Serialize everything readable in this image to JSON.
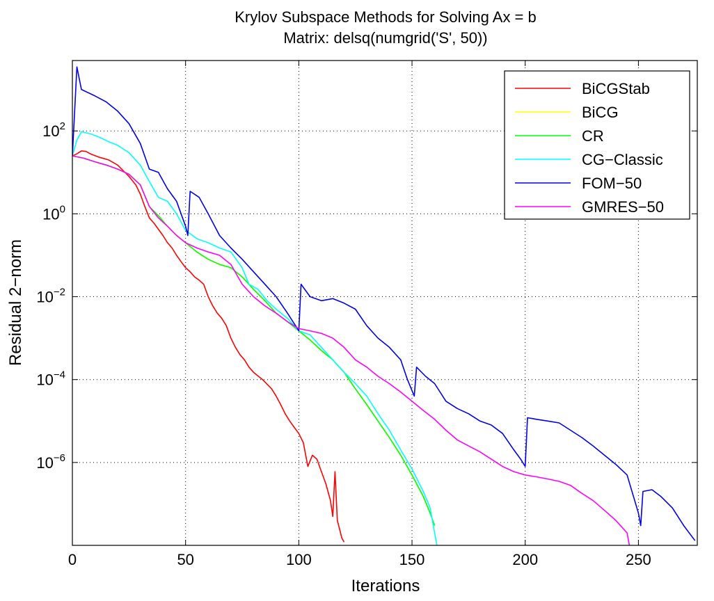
{
  "chart_data": {
    "type": "line",
    "title": "Krylov Subspace Methods for Solving Ax = b",
    "subtitle": "Matrix: delsq(numgrid('S', 50))",
    "xlabel": "Iterations",
    "ylabel": "Residual 2−norm",
    "xlim": [
      0,
      276
    ],
    "ylim": [
      1e-08,
      5000
    ],
    "yscale": "log",
    "xticks": [
      0,
      50,
      100,
      150,
      200,
      250
    ],
    "xtick_labels": [
      "0",
      "50",
      "100",
      "150",
      "200",
      "250"
    ],
    "yticks": [
      1e-06,
      0.0001,
      0.01,
      1,
      100
    ],
    "ytick_labels": [
      {
        "base": "10",
        "exp": "−6"
      },
      {
        "base": "10",
        "exp": "−4"
      },
      {
        "base": "10",
        "exp": "−2"
      },
      {
        "base": "10",
        "exp": "0"
      },
      {
        "base": "10",
        "exp": "2"
      }
    ],
    "grid": true,
    "legend_position": "top-right",
    "series": [
      {
        "name": "BiCGStab",
        "color": "#ff0000",
        "points": [
          [
            0,
            25
          ],
          [
            2,
            28
          ],
          [
            4,
            33
          ],
          [
            6,
            32
          ],
          [
            8,
            28
          ],
          [
            12,
            23
          ],
          [
            16,
            20
          ],
          [
            20,
            15
          ],
          [
            25,
            8
          ],
          [
            28,
            5
          ],
          [
            30,
            3
          ],
          [
            32,
            1.5
          ],
          [
            34,
            0.8
          ],
          [
            36,
            0.6
          ],
          [
            40,
            0.3
          ],
          [
            42,
            0.2
          ],
          [
            44,
            0.15
          ],
          [
            46,
            0.1
          ],
          [
            48,
            0.07
          ],
          [
            50,
            0.05
          ],
          [
            52,
            0.04
          ],
          [
            54,
            0.03
          ],
          [
            56,
            0.025
          ],
          [
            58,
            0.02
          ],
          [
            60,
            0.01
          ],
          [
            62,
            0.006
          ],
          [
            64,
            0.004
          ],
          [
            66,
            0.003
          ],
          [
            68,
            0.002
          ],
          [
            70,
            0.001
          ],
          [
            72,
            0.0006
          ],
          [
            74,
            0.0004
          ],
          [
            76,
            0.0003
          ],
          [
            78,
            0.0002
          ],
          [
            80,
            0.00015
          ],
          [
            84,
            0.0001
          ],
          [
            88,
            6e-05
          ],
          [
            90,
            4e-05
          ],
          [
            92,
            2.5e-05
          ],
          [
            94,
            1.5e-05
          ],
          [
            96,
            1e-05
          ],
          [
            98,
            7e-06
          ],
          [
            100,
            5e-06
          ],
          [
            102,
            3e-06
          ],
          [
            104,
            8e-07
          ],
          [
            106,
            1.5e-06
          ],
          [
            108,
            1.2e-06
          ],
          [
            110,
            6e-07
          ],
          [
            112,
            3e-07
          ],
          [
            114,
            1.2e-07
          ],
          [
            115,
            5e-08
          ],
          [
            116,
            6e-07
          ],
          [
            117,
            4e-08
          ],
          [
            118,
            2.5e-08
          ],
          [
            119,
            1.5e-08
          ],
          [
            120,
            1.2e-08
          ]
        ]
      },
      {
        "name": "BiCG",
        "color": "#ffff00",
        "points": [
          [
            0,
            25
          ],
          [
            5,
            22
          ],
          [
            10,
            18
          ],
          [
            15,
            15
          ],
          [
            20,
            12
          ],
          [
            25,
            9
          ],
          [
            30,
            5
          ],
          [
            34,
            1.5
          ],
          [
            38,
            0.9
          ],
          [
            42,
            0.5
          ],
          [
            46,
            0.3
          ],
          [
            50,
            0.2
          ],
          [
            55,
            0.12
          ],
          [
            60,
            0.08
          ],
          [
            65,
            0.06
          ],
          [
            70,
            0.05
          ],
          [
            75,
            0.03
          ],
          [
            80,
            0.015
          ],
          [
            85,
            0.008
          ],
          [
            90,
            0.004
          ],
          [
            95,
            0.0025
          ],
          [
            100,
            0.0015
          ],
          [
            105,
            0.0009
          ],
          [
            110,
            0.0005
          ],
          [
            115,
            0.0003
          ],
          [
            120,
            0.00015
          ],
          [
            125,
            6e-05
          ],
          [
            130,
            2.5e-05
          ],
          [
            135,
            1e-05
          ],
          [
            140,
            4e-06
          ],
          [
            145,
            1.5e-06
          ],
          [
            150,
            5e-07
          ],
          [
            155,
            1.5e-07
          ],
          [
            158,
            6e-08
          ],
          [
            160,
            3e-08
          ]
        ]
      },
      {
        "name": "CR",
        "color": "#00ff00",
        "points": [
          [
            0,
            25
          ],
          [
            5,
            22
          ],
          [
            10,
            18
          ],
          [
            15,
            15
          ],
          [
            20,
            12
          ],
          [
            25,
            9
          ],
          [
            30,
            5
          ],
          [
            34,
            1.5
          ],
          [
            38,
            0.9
          ],
          [
            42,
            0.5
          ],
          [
            46,
            0.3
          ],
          [
            50,
            0.2
          ],
          [
            55,
            0.12
          ],
          [
            60,
            0.08
          ],
          [
            65,
            0.06
          ],
          [
            70,
            0.05
          ],
          [
            75,
            0.03
          ],
          [
            80,
            0.015
          ],
          [
            85,
            0.008
          ],
          [
            90,
            0.004
          ],
          [
            95,
            0.0025
          ],
          [
            100,
            0.0015
          ],
          [
            105,
            0.0009
          ],
          [
            110,
            0.0005
          ],
          [
            115,
            0.0003
          ],
          [
            120,
            0.00015
          ],
          [
            125,
            6e-05
          ],
          [
            130,
            2.5e-05
          ],
          [
            135,
            1e-05
          ],
          [
            140,
            4e-06
          ],
          [
            145,
            1.5e-06
          ],
          [
            150,
            5e-07
          ],
          [
            155,
            1.5e-07
          ],
          [
            158,
            6e-08
          ],
          [
            160,
            3e-08
          ]
        ]
      },
      {
        "name": "CG−Classic",
        "color": "#00ffff",
        "points": [
          [
            0,
            25
          ],
          [
            2,
            60
          ],
          [
            4,
            95
          ],
          [
            8,
            85
          ],
          [
            12,
            70
          ],
          [
            16,
            55
          ],
          [
            20,
            45
          ],
          [
            25,
            30
          ],
          [
            30,
            15
          ],
          [
            34,
            6
          ],
          [
            38,
            2.5
          ],
          [
            42,
            2
          ],
          [
            46,
            1
          ],
          [
            50,
            0.4
          ],
          [
            55,
            0.25
          ],
          [
            60,
            0.2
          ],
          [
            65,
            0.15
          ],
          [
            70,
            0.12
          ],
          [
            75,
            0.05
          ],
          [
            78,
            0.02
          ],
          [
            82,
            0.015
          ],
          [
            86,
            0.008
          ],
          [
            90,
            0.005
          ],
          [
            95,
            0.003
          ],
          [
            100,
            0.0015
          ],
          [
            105,
            0.0012
          ],
          [
            110,
            0.0006
          ],
          [
            115,
            0.0003
          ],
          [
            120,
            0.00015
          ],
          [
            125,
            8e-05
          ],
          [
            130,
            4e-05
          ],
          [
            135,
            1.5e-05
          ],
          [
            140,
            6e-06
          ],
          [
            145,
            2e-06
          ],
          [
            150,
            7e-07
          ],
          [
            155,
            2e-07
          ],
          [
            158,
            8e-08
          ],
          [
            161,
            1e-08
          ]
        ]
      },
      {
        "name": "FOM−50",
        "color": "#0000ee",
        "points": [
          [
            0,
            25
          ],
          [
            2,
            3500
          ],
          [
            4,
            1000
          ],
          [
            10,
            700
          ],
          [
            15,
            500
          ],
          [
            20,
            300
          ],
          [
            25,
            150
          ],
          [
            30,
            50
          ],
          [
            34,
            12
          ],
          [
            38,
            10
          ],
          [
            42,
            4
          ],
          [
            46,
            2
          ],
          [
            50,
            0.5
          ],
          [
            51,
            0.3
          ],
          [
            52,
            3.5
          ],
          [
            56,
            2.5
          ],
          [
            60,
            1
          ],
          [
            65,
            0.3
          ],
          [
            70,
            0.15
          ],
          [
            75,
            0.08
          ],
          [
            80,
            0.04
          ],
          [
            85,
            0.02
          ],
          [
            90,
            0.01
          ],
          [
            95,
            0.004
          ],
          [
            100,
            0.0015
          ],
          [
            101,
            0.02
          ],
          [
            105,
            0.01
          ],
          [
            110,
            0.008
          ],
          [
            115,
            0.009
          ],
          [
            120,
            0.007
          ],
          [
            125,
            0.005
          ],
          [
            130,
            0.002
          ],
          [
            135,
            0.001
          ],
          [
            140,
            0.0006
          ],
          [
            145,
            0.0003
          ],
          [
            148,
            0.0001
          ],
          [
            151,
            4e-05
          ],
          [
            152,
            0.0002
          ],
          [
            156,
            0.00012
          ],
          [
            160,
            8e-05
          ],
          [
            165,
            3e-05
          ],
          [
            170,
            2e-05
          ],
          [
            175,
            1.5e-05
          ],
          [
            180,
            1e-05
          ],
          [
            185,
            8e-06
          ],
          [
            190,
            5e-06
          ],
          [
            195,
            2e-06
          ],
          [
            198,
            1.2e-06
          ],
          [
            200,
            8e-07
          ],
          [
            201,
            1.2e-05
          ],
          [
            205,
            1.1e-05
          ],
          [
            210,
            1e-05
          ],
          [
            215,
            9e-06
          ],
          [
            220,
            6e-06
          ],
          [
            225,
            4e-06
          ],
          [
            230,
            2.5e-06
          ],
          [
            235,
            1.5e-06
          ],
          [
            240,
            9e-07
          ],
          [
            245,
            5e-07
          ],
          [
            250,
            6e-08
          ],
          [
            251,
            3e-08
          ],
          [
            252,
            2e-07
          ],
          [
            256,
            2.2e-07
          ],
          [
            260,
            1.5e-07
          ],
          [
            265,
            8e-08
          ],
          [
            270,
            3e-08
          ],
          [
            275,
            1.3e-08
          ]
        ]
      },
      {
        "name": "GMRES−50",
        "color": "#ff00ff",
        "points": [
          [
            0,
            25
          ],
          [
            5,
            22
          ],
          [
            10,
            18
          ],
          [
            15,
            15
          ],
          [
            20,
            12
          ],
          [
            25,
            9
          ],
          [
            30,
            5
          ],
          [
            34,
            1.5
          ],
          [
            38,
            0.8
          ],
          [
            42,
            0.5
          ],
          [
            46,
            0.3
          ],
          [
            50,
            0.2
          ],
          [
            55,
            0.15
          ],
          [
            60,
            0.12
          ],
          [
            65,
            0.1
          ],
          [
            70,
            0.06
          ],
          [
            75,
            0.02
          ],
          [
            80,
            0.01
          ],
          [
            85,
            0.006
          ],
          [
            90,
            0.004
          ],
          [
            95,
            0.0025
          ],
          [
            100,
            0.0017
          ],
          [
            105,
            0.0015
          ],
          [
            110,
            0.0013
          ],
          [
            115,
            0.001
          ],
          [
            120,
            0.0006
          ],
          [
            125,
            0.0003
          ],
          [
            130,
            0.0002
          ],
          [
            135,
            0.00012
          ],
          [
            140,
            8e-05
          ],
          [
            145,
            5e-05
          ],
          [
            150,
            3e-05
          ],
          [
            155,
            1.8e-05
          ],
          [
            160,
            1.1e-05
          ],
          [
            165,
            6e-06
          ],
          [
            170,
            3.5e-06
          ],
          [
            175,
            2.5e-06
          ],
          [
            180,
            1.8e-06
          ],
          [
            185,
            1.2e-06
          ],
          [
            190,
            8e-07
          ],
          [
            195,
            6e-07
          ],
          [
            200,
            5e-07
          ],
          [
            205,
            4.5e-07
          ],
          [
            210,
            4e-07
          ],
          [
            215,
            3.5e-07
          ],
          [
            220,
            2.8e-07
          ],
          [
            225,
            1.8e-07
          ],
          [
            230,
            1.2e-07
          ],
          [
            235,
            7e-08
          ],
          [
            240,
            4e-08
          ],
          [
            245,
            2e-08
          ],
          [
            246,
            1e-08
          ]
        ]
      }
    ]
  }
}
